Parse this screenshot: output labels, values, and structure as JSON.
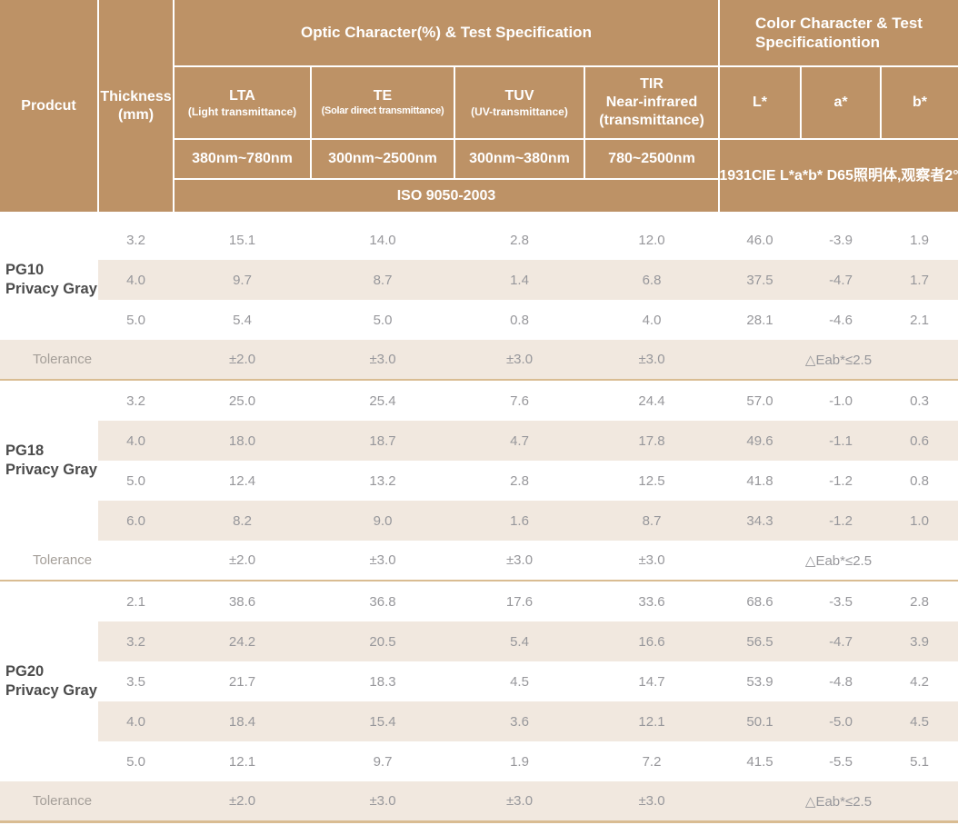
{
  "colors": {
    "header_bg": "#bd9266",
    "header_text": "#ffffff",
    "stripe_bg": "#f1e8df",
    "separator": "#d9bc92",
    "value_text": "#97979b",
    "product_text": "#4b4b4b"
  },
  "header": {
    "product": "Prodcut",
    "thickness_line1": "Thickness",
    "thickness_line2": "(mm)",
    "optic_group": "Optic Character(%) & Test Specification",
    "color_group_line1": "Color Character & Test",
    "color_group_line2": "Specificationtion",
    "lta_title": "LTA",
    "lta_sub": "(Light transmittance)",
    "lta_range": "380nm~780nm",
    "te_title": "TE",
    "te_sub": "(Solar direct transmittance)",
    "te_range": "300nm~2500nm",
    "tuv_title": "TUV",
    "tuv_sub": "(UV-transmittance)",
    "tuv_range": "300nm~380nm",
    "tir_line1": "TIR",
    "tir_line2": "Near-infrared",
    "tir_line3": "(transmittance)",
    "tir_range": "780~2500nm",
    "l_star": "L*",
    "a_star": "a*",
    "b_star": "b*",
    "iso": "ISO 9050-2003",
    "cie": "1931CIE L*a*b*  D65照明体,观察者2°"
  },
  "sections": [
    {
      "product_line1": "PG10",
      "product_line2": "Privacy Gray",
      "rows": [
        {
          "thickness": "3.2",
          "lta": "15.1",
          "te": "14.0",
          "tuv": "2.8",
          "tir": "12.0",
          "l": "46.0",
          "a": "-3.9",
          "b": "1.9"
        },
        {
          "thickness": "4.0",
          "lta": "9.7",
          "te": "8.7",
          "tuv": "1.4",
          "tir": "6.8",
          "l": "37.5",
          "a": "-4.7",
          "b": "1.7"
        },
        {
          "thickness": "5.0",
          "lta": "5.4",
          "te": "5.0",
          "tuv": "0.8",
          "tir": "4.0",
          "l": "28.1",
          "a": "-4.6",
          "b": "2.1"
        }
      ],
      "tolerance": {
        "label": "Tolerance",
        "lta": "±2.0",
        "te": "±3.0",
        "tuv": "±3.0",
        "tir": "±3.0",
        "color": "△Eab*≤2.5"
      }
    },
    {
      "product_line1": "PG18",
      "product_line2": "Privacy Gray",
      "rows": [
        {
          "thickness": "3.2",
          "lta": "25.0",
          "te": "25.4",
          "tuv": "7.6",
          "tir": "24.4",
          "l": "57.0",
          "a": "-1.0",
          "b": "0.3"
        },
        {
          "thickness": "4.0",
          "lta": "18.0",
          "te": "18.7",
          "tuv": "4.7",
          "tir": "17.8",
          "l": "49.6",
          "a": "-1.1",
          "b": "0.6"
        },
        {
          "thickness": "5.0",
          "lta": "12.4",
          "te": "13.2",
          "tuv": "2.8",
          "tir": "12.5",
          "l": "41.8",
          "a": "-1.2",
          "b": "0.8"
        },
        {
          "thickness": "6.0",
          "lta": "8.2",
          "te": "9.0",
          "tuv": "1.6",
          "tir": "8.7",
          "l": "34.3",
          "a": "-1.2",
          "b": "1.0"
        }
      ],
      "tolerance": {
        "label": "Tolerance",
        "lta": "±2.0",
        "te": "±3.0",
        "tuv": "±3.0",
        "tir": "±3.0",
        "color": "△Eab*≤2.5"
      }
    },
    {
      "product_line1": "PG20",
      "product_line2": "Privacy Gray",
      "rows": [
        {
          "thickness": "2.1",
          "lta": "38.6",
          "te": "36.8",
          "tuv": "17.6",
          "tir": "33.6",
          "l": "68.6",
          "a": "-3.5",
          "b": "2.8"
        },
        {
          "thickness": "3.2",
          "lta": "24.2",
          "te": "20.5",
          "tuv": "5.4",
          "tir": "16.6",
          "l": "56.5",
          "a": "-4.7",
          "b": "3.9"
        },
        {
          "thickness": "3.5",
          "lta": "21.7",
          "te": "18.3",
          "tuv": "4.5",
          "tir": "14.7",
          "l": "53.9",
          "a": "-4.8",
          "b": "4.2"
        },
        {
          "thickness": "4.0",
          "lta": "18.4",
          "te": "15.4",
          "tuv": "3.6",
          "tir": "12.1",
          "l": "50.1",
          "a": "-5.0",
          "b": "4.5"
        },
        {
          "thickness": "5.0",
          "lta": "12.1",
          "te": "9.7",
          "tuv": "1.9",
          "tir": "7.2",
          "l": "41.5",
          "a": "-5.5",
          "b": "5.1"
        }
      ],
      "tolerance": {
        "label": "Tolerance",
        "lta": "±2.0",
        "te": "±3.0",
        "tuv": "±3.0",
        "tir": "±3.0",
        "color": "△Eab*≤2.5"
      }
    }
  ]
}
